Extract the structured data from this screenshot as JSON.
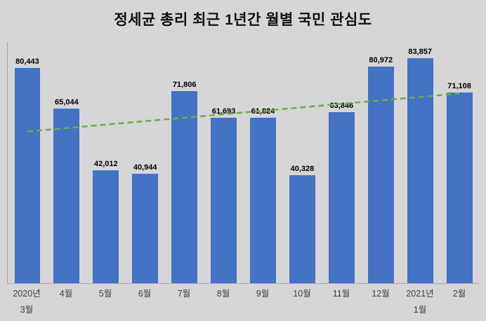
{
  "title": "정세균 총리 최근 1년간 월별 국민 관심도",
  "chart_data": {
    "type": "bar",
    "title": "정세균 총리 최근 1년간 월별 국민 관심도",
    "categories": [
      [
        "2020년",
        "3월"
      ],
      [
        "4월"
      ],
      [
        "5월"
      ],
      [
        "6월"
      ],
      [
        "7월"
      ],
      [
        "8월"
      ],
      [
        "9월"
      ],
      [
        "10월"
      ],
      [
        "11월"
      ],
      [
        "12월"
      ],
      [
        "2021년",
        "1월"
      ],
      [
        "2월"
      ]
    ],
    "values": [
      80443,
      65044,
      42012,
      40944,
      71806,
      61693,
      61824,
      40328,
      63846,
      80972,
      83857,
      71108
    ],
    "value_labels": [
      "80,443",
      "65,044",
      "42,012",
      "40,944",
      "71,806",
      "61,693",
      "61,824",
      "40,328",
      "63,846",
      "80,972",
      "83,857",
      "71,108"
    ],
    "xlabel": "",
    "ylabel": "",
    "ylim": [
      0,
      90000
    ],
    "grid": false,
    "legend": "none",
    "colors": {
      "bar": "#4472c4",
      "background": "#d6d6d6",
      "axis": "#a6a6a6",
      "trendline": "#70ad47",
      "data_label": "#000000"
    },
    "trendline": {
      "style": "dashed",
      "color": "#70ad47",
      "start_value": 56600,
      "end_value": 70800
    }
  }
}
